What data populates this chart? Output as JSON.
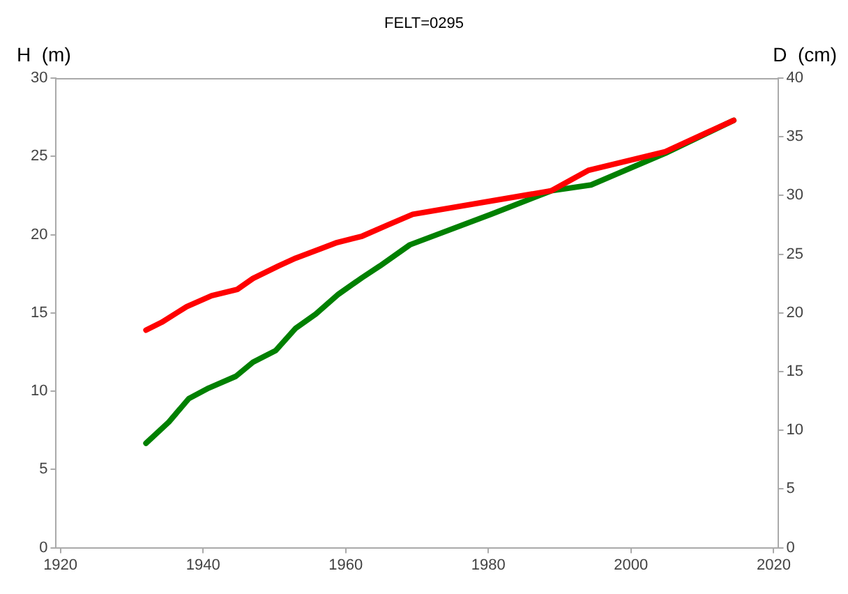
{
  "chart_data": {
    "type": "line",
    "title": "FELT=0295",
    "ylabel": "H  (m)",
    "y2label": "D  (cm)",
    "xlim": [
      1919.4,
      2020.6
    ],
    "xticks": [
      1920,
      1940,
      1960,
      1980,
      2000,
      2020
    ],
    "ylim": [
      0,
      30
    ],
    "yticks": [
      0,
      5,
      10,
      15,
      20,
      25,
      30
    ],
    "y2lim": [
      0,
      40
    ],
    "y2ticks": [
      0,
      5,
      10,
      15,
      20,
      25,
      30,
      35,
      40
    ],
    "grid": false,
    "legend": false,
    "line_style": "solid",
    "series": [
      {
        "color": "#ff0000",
        "axis": "y",
        "x": [
          1932,
          1934.2,
          1937.7,
          1941.2,
          1944.8,
          1947,
          1950.6,
          1953,
          1956.5,
          1958.8,
          1962.3,
          1965.8,
          1969.4,
          1988.8,
          1994,
          2004.8,
          2014.4
        ],
        "values": [
          13.9,
          14.4,
          15.4,
          16.1,
          16.5,
          17.2,
          18.0,
          18.5,
          19.1,
          19.5,
          19.9,
          20.6,
          21.3,
          22.8,
          24.1,
          25.3,
          27.3
        ]
      },
      {
        "color": "#008000",
        "axis": "y2",
        "x": [
          1932,
          1935.2,
          1938,
          1940.8,
          1944.6,
          1947,
          1950.2,
          1953,
          1955.8,
          1959,
          1962.3,
          1964.8,
          1969,
          1980.4,
          1988.8,
          1994.4,
          2004.8,
          2014.4
        ],
        "values": [
          8.9,
          10.7,
          12.7,
          13.6,
          14.6,
          15.8,
          16.8,
          18.7,
          19.9,
          21.6,
          23.0,
          24.0,
          25.8,
          28.4,
          30.4,
          30.9,
          33.6,
          36.4
        ]
      }
    ]
  }
}
